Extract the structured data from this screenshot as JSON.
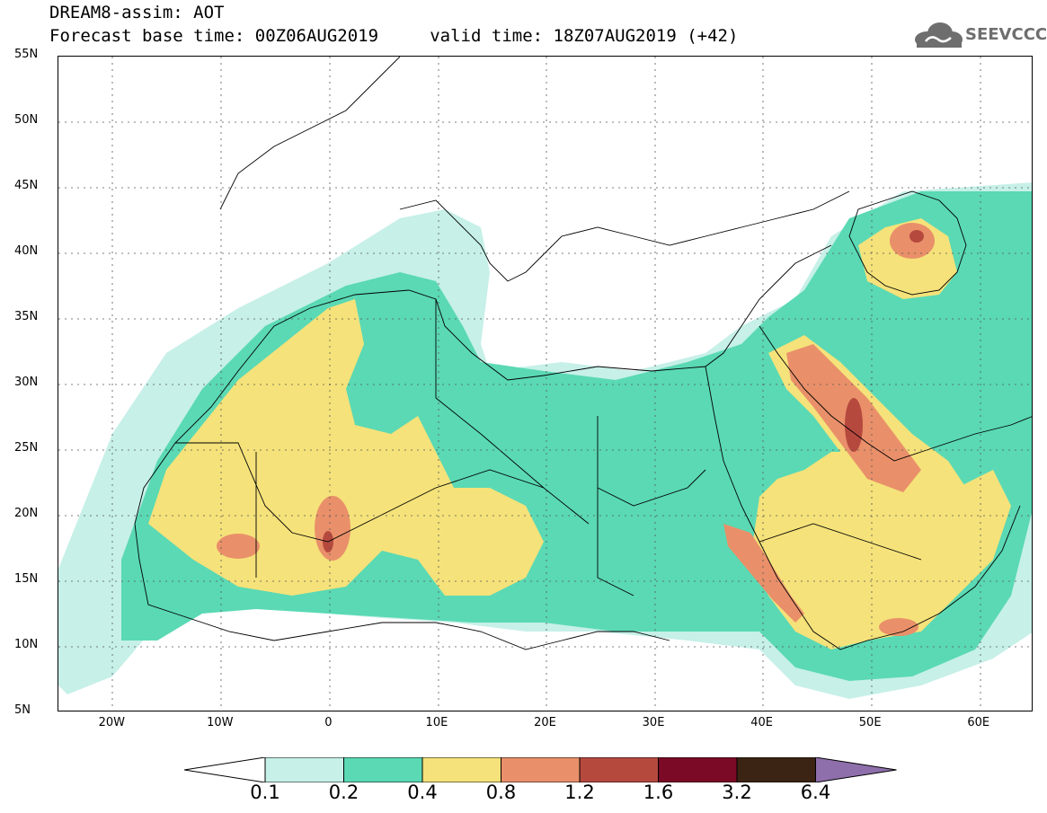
{
  "header": {
    "title_line1": "DREAM8-assim: AOT",
    "title_line2": "Forecast base time: 00Z06AUG2019     valid time: 18Z07AUG2019 (+42)"
  },
  "logo": {
    "text": "SEEVCCC",
    "icon": "cloud-icon",
    "color": "#6e6e6e"
  },
  "map": {
    "lon_range": [
      -25,
      65
    ],
    "lat_range": [
      5,
      55
    ],
    "lon_ticks": [
      {
        "value": -20,
        "label": "20W"
      },
      {
        "value": -10,
        "label": "10W"
      },
      {
        "value": 0,
        "label": "0"
      },
      {
        "value": 10,
        "label": "10E"
      },
      {
        "value": 20,
        "label": "20E"
      },
      {
        "value": 30,
        "label": "30E"
      },
      {
        "value": 40,
        "label": "40E"
      },
      {
        "value": 50,
        "label": "50E"
      },
      {
        "value": 60,
        "label": "60E"
      }
    ],
    "lat_ticks": [
      {
        "value": 55,
        "label": "55N"
      },
      {
        "value": 50,
        "label": "50N"
      },
      {
        "value": 45,
        "label": "45N"
      },
      {
        "value": 40,
        "label": "40N"
      },
      {
        "value": 35,
        "label": "35N"
      },
      {
        "value": 30,
        "label": "30N"
      },
      {
        "value": 25,
        "label": "25N"
      },
      {
        "value": 20,
        "label": "20N"
      },
      {
        "value": 15,
        "label": "15N"
      },
      {
        "value": 10,
        "label": "10N"
      },
      {
        "value": 5,
        "label": "5N"
      }
    ],
    "gridlines": "dotted"
  },
  "colorbar": {
    "labels": [
      "0.1",
      "0.2",
      "0.4",
      "0.8",
      "1.2",
      "1.6",
      "3.2",
      "6.4"
    ],
    "colors": [
      "#ffffff",
      "#c6f0e8",
      "#5ad9b4",
      "#f5e27a",
      "#e9906a",
      "#b6493e",
      "#7a0a25",
      "#3b2413",
      "#8e6fab"
    ]
  }
}
